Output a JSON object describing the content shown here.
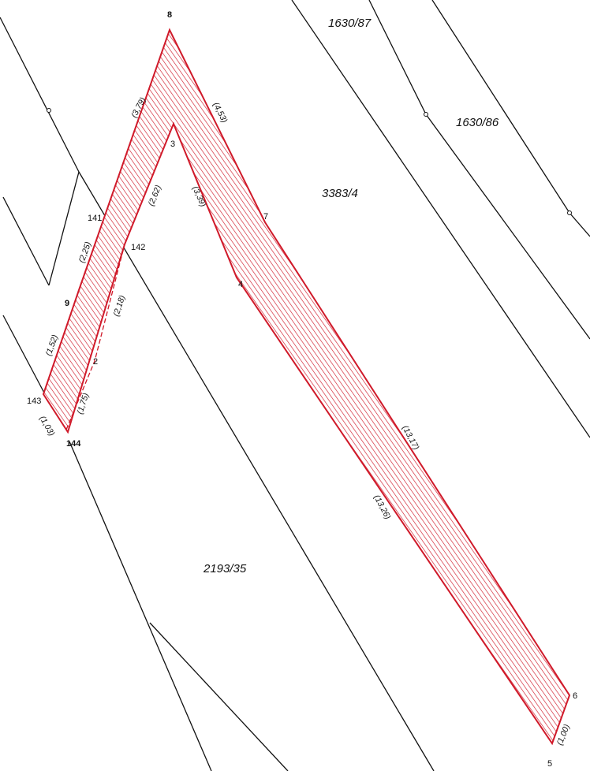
{
  "parcels": {
    "p1": "1630/87",
    "p2": "1630/86",
    "p3": "3383/4",
    "p4": "2193/35"
  },
  "points": {
    "pt8": "8",
    "pt3": "3",
    "pt7": "7",
    "pt4": "4",
    "pt141": "141",
    "pt142": "142",
    "pt9": "9",
    "pt2": "2",
    "pt143": "143",
    "pt144": "144",
    "pt6": "6",
    "pt5": "5"
  },
  "dimensions": {
    "d379": "(3,79)",
    "d453": "(4,53)",
    "d262": "(2,62)",
    "d339": "(3,39)",
    "d225": "(2,25)",
    "d218": "(2,18)",
    "d152": "(1,52)",
    "d175": "(1,75)",
    "d103": "(1,03)",
    "d1317": "(13,17)",
    "d1326": "(13,26)",
    "d100": "(1,00)"
  },
  "colors": {
    "parcel_outline": "#d01a2a",
    "hatch": "#d01a2a",
    "boundary": "#111111"
  }
}
